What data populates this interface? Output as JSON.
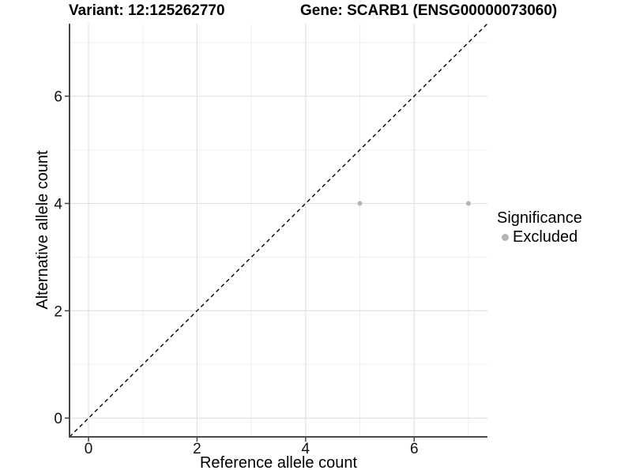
{
  "header": {
    "title_left": "Variant: 12:125262770",
    "title_right": "Gene: SCARB1 (ENSG00000073060)"
  },
  "chart_data": {
    "type": "scatter",
    "title": "Variant: 12:125262770   Gene: SCARB1 (ENSG00000073060)",
    "xlabel": "Reference allele count",
    "ylabel": "Alternative allele count",
    "xlim": [
      -0.35,
      7.35
    ],
    "ylim": [
      -0.35,
      7.35
    ],
    "x_major_ticks": [
      0,
      2,
      4,
      6
    ],
    "y_major_ticks": [
      0,
      2,
      4,
      6
    ],
    "x_minor_gridlines": [
      1,
      3,
      5,
      7
    ],
    "y_minor_gridlines": [
      1,
      3,
      5,
      7
    ],
    "grid": "major and minor gridlines on white background",
    "series": [
      {
        "name": "Excluded",
        "marker": "circle",
        "color": "#b5b5b5",
        "points": [
          {
            "x": 5,
            "y": 4
          },
          {
            "x": 7,
            "y": 4
          }
        ]
      }
    ],
    "reference_line": {
      "kind": "identity y=x",
      "style": "dashed",
      "color": "#000000",
      "x1": -0.35,
      "y1": -0.35,
      "x2": 7.35,
      "y2": 7.35
    },
    "legend": {
      "title": "Significance",
      "position": "right",
      "items": [
        {
          "label": "Excluded",
          "color": "#b5b5b5"
        }
      ]
    }
  },
  "colors": {
    "background": "#ffffff",
    "gridline_major": "#e2e2e2",
    "gridline_minor": "#efefef",
    "axis_line": "#4a4a4a",
    "tick_label": "#111111",
    "point": "#b5b5b5",
    "legend_dot": "#b0b0b0"
  }
}
